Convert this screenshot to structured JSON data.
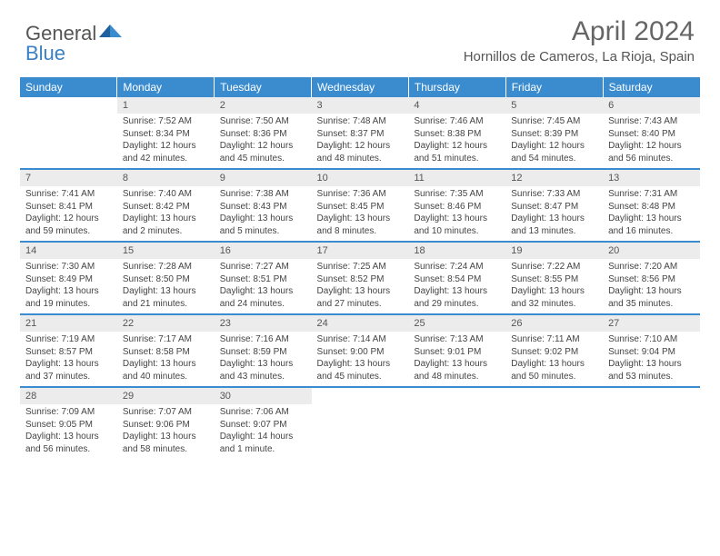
{
  "logo": {
    "text1": "General",
    "text2": "Blue"
  },
  "title": "April 2024",
  "location": "Hornillos de Cameros, La Rioja, Spain",
  "colors": {
    "header_bg": "#3b8ccf",
    "header_text": "#ffffff",
    "daynum_bg": "#ececec",
    "rule": "#3b8ccf",
    "logo_blue": "#3b7fc4",
    "body_text": "#444444"
  },
  "fonts": {
    "title_size_pt": 22,
    "location_size_pt": 11,
    "dayhead_size_pt": 9,
    "cell_size_pt": 7.5
  },
  "dayHeaders": [
    "Sunday",
    "Monday",
    "Tuesday",
    "Wednesday",
    "Thursday",
    "Friday",
    "Saturday"
  ],
  "weeks": [
    [
      null,
      {
        "n": "1",
        "sr": "Sunrise: 7:52 AM",
        "ss": "Sunset: 8:34 PM",
        "d1": "Daylight: 12 hours",
        "d2": "and 42 minutes."
      },
      {
        "n": "2",
        "sr": "Sunrise: 7:50 AM",
        "ss": "Sunset: 8:36 PM",
        "d1": "Daylight: 12 hours",
        "d2": "and 45 minutes."
      },
      {
        "n": "3",
        "sr": "Sunrise: 7:48 AM",
        "ss": "Sunset: 8:37 PM",
        "d1": "Daylight: 12 hours",
        "d2": "and 48 minutes."
      },
      {
        "n": "4",
        "sr": "Sunrise: 7:46 AM",
        "ss": "Sunset: 8:38 PM",
        "d1": "Daylight: 12 hours",
        "d2": "and 51 minutes."
      },
      {
        "n": "5",
        "sr": "Sunrise: 7:45 AM",
        "ss": "Sunset: 8:39 PM",
        "d1": "Daylight: 12 hours",
        "d2": "and 54 minutes."
      },
      {
        "n": "6",
        "sr": "Sunrise: 7:43 AM",
        "ss": "Sunset: 8:40 PM",
        "d1": "Daylight: 12 hours",
        "d2": "and 56 minutes."
      }
    ],
    [
      {
        "n": "7",
        "sr": "Sunrise: 7:41 AM",
        "ss": "Sunset: 8:41 PM",
        "d1": "Daylight: 12 hours",
        "d2": "and 59 minutes."
      },
      {
        "n": "8",
        "sr": "Sunrise: 7:40 AM",
        "ss": "Sunset: 8:42 PM",
        "d1": "Daylight: 13 hours",
        "d2": "and 2 minutes."
      },
      {
        "n": "9",
        "sr": "Sunrise: 7:38 AM",
        "ss": "Sunset: 8:43 PM",
        "d1": "Daylight: 13 hours",
        "d2": "and 5 minutes."
      },
      {
        "n": "10",
        "sr": "Sunrise: 7:36 AM",
        "ss": "Sunset: 8:45 PM",
        "d1": "Daylight: 13 hours",
        "d2": "and 8 minutes."
      },
      {
        "n": "11",
        "sr": "Sunrise: 7:35 AM",
        "ss": "Sunset: 8:46 PM",
        "d1": "Daylight: 13 hours",
        "d2": "and 10 minutes."
      },
      {
        "n": "12",
        "sr": "Sunrise: 7:33 AM",
        "ss": "Sunset: 8:47 PM",
        "d1": "Daylight: 13 hours",
        "d2": "and 13 minutes."
      },
      {
        "n": "13",
        "sr": "Sunrise: 7:31 AM",
        "ss": "Sunset: 8:48 PM",
        "d1": "Daylight: 13 hours",
        "d2": "and 16 minutes."
      }
    ],
    [
      {
        "n": "14",
        "sr": "Sunrise: 7:30 AM",
        "ss": "Sunset: 8:49 PM",
        "d1": "Daylight: 13 hours",
        "d2": "and 19 minutes."
      },
      {
        "n": "15",
        "sr": "Sunrise: 7:28 AM",
        "ss": "Sunset: 8:50 PM",
        "d1": "Daylight: 13 hours",
        "d2": "and 21 minutes."
      },
      {
        "n": "16",
        "sr": "Sunrise: 7:27 AM",
        "ss": "Sunset: 8:51 PM",
        "d1": "Daylight: 13 hours",
        "d2": "and 24 minutes."
      },
      {
        "n": "17",
        "sr": "Sunrise: 7:25 AM",
        "ss": "Sunset: 8:52 PM",
        "d1": "Daylight: 13 hours",
        "d2": "and 27 minutes."
      },
      {
        "n": "18",
        "sr": "Sunrise: 7:24 AM",
        "ss": "Sunset: 8:54 PM",
        "d1": "Daylight: 13 hours",
        "d2": "and 29 minutes."
      },
      {
        "n": "19",
        "sr": "Sunrise: 7:22 AM",
        "ss": "Sunset: 8:55 PM",
        "d1": "Daylight: 13 hours",
        "d2": "and 32 minutes."
      },
      {
        "n": "20",
        "sr": "Sunrise: 7:20 AM",
        "ss": "Sunset: 8:56 PM",
        "d1": "Daylight: 13 hours",
        "d2": "and 35 minutes."
      }
    ],
    [
      {
        "n": "21",
        "sr": "Sunrise: 7:19 AM",
        "ss": "Sunset: 8:57 PM",
        "d1": "Daylight: 13 hours",
        "d2": "and 37 minutes."
      },
      {
        "n": "22",
        "sr": "Sunrise: 7:17 AM",
        "ss": "Sunset: 8:58 PM",
        "d1": "Daylight: 13 hours",
        "d2": "and 40 minutes."
      },
      {
        "n": "23",
        "sr": "Sunrise: 7:16 AM",
        "ss": "Sunset: 8:59 PM",
        "d1": "Daylight: 13 hours",
        "d2": "and 43 minutes."
      },
      {
        "n": "24",
        "sr": "Sunrise: 7:14 AM",
        "ss": "Sunset: 9:00 PM",
        "d1": "Daylight: 13 hours",
        "d2": "and 45 minutes."
      },
      {
        "n": "25",
        "sr": "Sunrise: 7:13 AM",
        "ss": "Sunset: 9:01 PM",
        "d1": "Daylight: 13 hours",
        "d2": "and 48 minutes."
      },
      {
        "n": "26",
        "sr": "Sunrise: 7:11 AM",
        "ss": "Sunset: 9:02 PM",
        "d1": "Daylight: 13 hours",
        "d2": "and 50 minutes."
      },
      {
        "n": "27",
        "sr": "Sunrise: 7:10 AM",
        "ss": "Sunset: 9:04 PM",
        "d1": "Daylight: 13 hours",
        "d2": "and 53 minutes."
      }
    ],
    [
      {
        "n": "28",
        "sr": "Sunrise: 7:09 AM",
        "ss": "Sunset: 9:05 PM",
        "d1": "Daylight: 13 hours",
        "d2": "and 56 minutes."
      },
      {
        "n": "29",
        "sr": "Sunrise: 7:07 AM",
        "ss": "Sunset: 9:06 PM",
        "d1": "Daylight: 13 hours",
        "d2": "and 58 minutes."
      },
      {
        "n": "30",
        "sr": "Sunrise: 7:06 AM",
        "ss": "Sunset: 9:07 PM",
        "d1": "Daylight: 14 hours",
        "d2": "and 1 minute."
      },
      null,
      null,
      null,
      null
    ]
  ]
}
